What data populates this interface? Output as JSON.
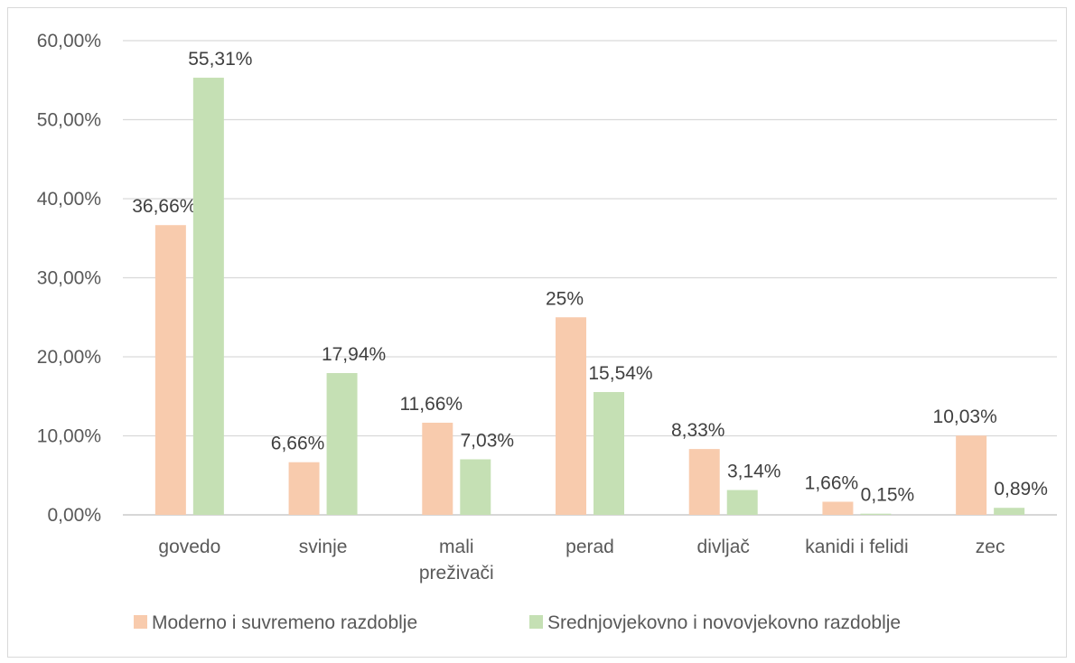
{
  "chart_data": {
    "type": "bar",
    "categories": [
      [
        "govedo"
      ],
      [
        "svinje"
      ],
      [
        "mali",
        "preživači"
      ],
      [
        "perad"
      ],
      [
        "divljač"
      ],
      [
        "kanidi i felidi"
      ],
      [
        "zec"
      ]
    ],
    "series": [
      {
        "name": "Moderno i suvremeno razdoblje",
        "color": "#f8cbad",
        "values": [
          36.66,
          6.66,
          11.66,
          25,
          8.33,
          1.66,
          10.03
        ],
        "labels": [
          "36,66%",
          "6,66%",
          "11,66%",
          "25%",
          "8,33%",
          "1,66%",
          "10,03%"
        ]
      },
      {
        "name": "Srednjovjekovno i novovjekovno razdoblje",
        "color": "#c5e0b4",
        "values": [
          55.31,
          17.94,
          7.03,
          15.54,
          3.14,
          0.15,
          0.89
        ],
        "labels": [
          "55,31%",
          "17,94%",
          "7,03%",
          "15,54%",
          "3,14%",
          "0,15%",
          "0,89%"
        ]
      }
    ],
    "ylim": [
      0,
      60
    ],
    "yticks": [
      "0,00%",
      "10,00%",
      "20,00%",
      "30,00%",
      "40,00%",
      "50,00%",
      "60,00%"
    ],
    "grid": true,
    "legend": "bottom",
    "title": "",
    "xlabel": "",
    "ylabel": ""
  }
}
